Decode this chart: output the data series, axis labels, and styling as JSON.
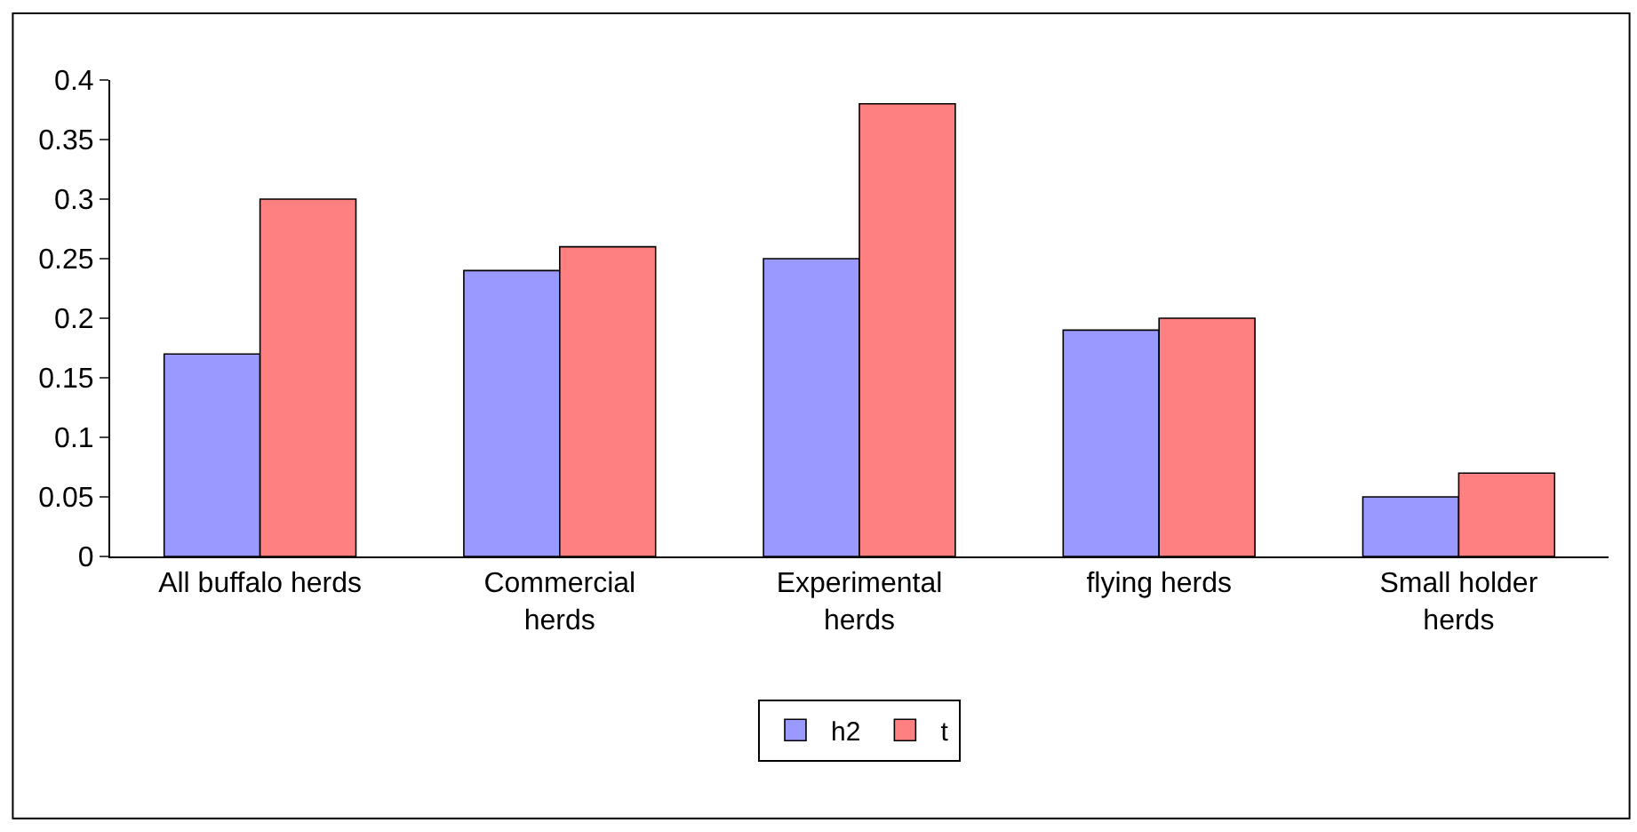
{
  "chart_data": {
    "type": "bar",
    "categories": [
      "All buffalo herds",
      "Commercial\nherds",
      "Experimental\nherds",
      "flying herds",
      "Small holder\nherds"
    ],
    "series": [
      {
        "name": "h2",
        "color": "#9999ff",
        "values": [
          0.17,
          0.24,
          0.25,
          0.19,
          0.05
        ]
      },
      {
        "name": "t",
        "color": "#ff8080",
        "values": [
          0.3,
          0.26,
          0.38,
          0.2,
          0.07
        ]
      }
    ],
    "ylim": [
      0,
      0.4
    ],
    "yticks": [
      0,
      0.05,
      0.1,
      0.15,
      0.2,
      0.25,
      0.3,
      0.35,
      0.4
    ],
    "grid": false,
    "legend": "bottom"
  }
}
